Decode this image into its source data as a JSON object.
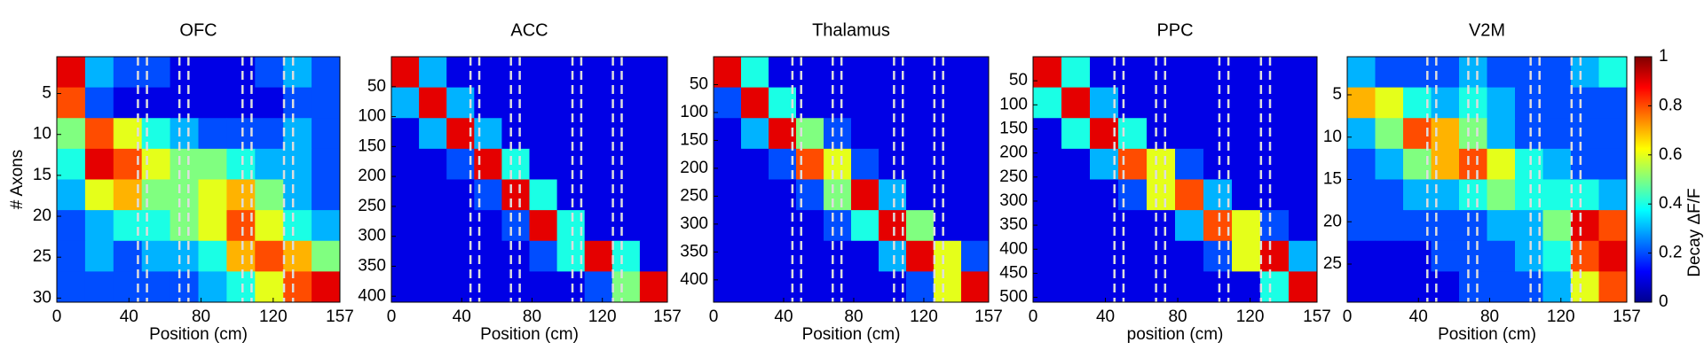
{
  "chart_data": [
    {
      "type": "heatmap",
      "title": "OFC",
      "xlabel": "Position (cm)",
      "ylabel": "# Axons",
      "xlim": [
        0,
        157
      ],
      "xticks": [
        0,
        40,
        80,
        120,
        157
      ],
      "ylim": [
        0.5,
        30.5
      ],
      "yticks": [
        5,
        10,
        15,
        20,
        25,
        30
      ],
      "landmarks": [
        45,
        50,
        68,
        73,
        103,
        108,
        126,
        131
      ],
      "z": [
        [
          0.9,
          0.3,
          0.2,
          0.2,
          0.1,
          0.1,
          0.1,
          0.2,
          0.3,
          0.2
        ],
        [
          0.8,
          0.2,
          0.1,
          0.1,
          0.1,
          0.1,
          0.1,
          0.1,
          0.2,
          0.2
        ],
        [
          0.5,
          0.8,
          0.6,
          0.4,
          0.3,
          0.2,
          0.2,
          0.2,
          0.3,
          0.2
        ],
        [
          0.4,
          0.9,
          0.8,
          0.6,
          0.5,
          0.5,
          0.4,
          0.3,
          0.3,
          0.2
        ],
        [
          0.3,
          0.6,
          0.7,
          0.5,
          0.5,
          0.6,
          0.7,
          0.5,
          0.3,
          0.2
        ],
        [
          0.2,
          0.3,
          0.4,
          0.4,
          0.5,
          0.6,
          0.8,
          0.6,
          0.4,
          0.3
        ],
        [
          0.2,
          0.3,
          0.2,
          0.3,
          0.3,
          0.4,
          0.7,
          0.8,
          0.7,
          0.5
        ],
        [
          0.2,
          0.2,
          0.2,
          0.2,
          0.2,
          0.3,
          0.4,
          0.6,
          0.8,
          0.9
        ]
      ]
    },
    {
      "type": "heatmap",
      "title": "ACC",
      "xlabel": "Position (cm)",
      "xlim": [
        0,
        157
      ],
      "xticks": [
        0,
        40,
        80,
        120,
        157
      ],
      "ylim": [
        0,
        410
      ],
      "yticks": [
        50,
        100,
        150,
        200,
        250,
        300,
        350,
        400
      ],
      "landmarks": [
        45,
        50,
        68,
        73,
        103,
        108,
        126,
        131
      ],
      "z": [
        [
          0.9,
          0.3,
          0.1,
          0.1,
          0.1,
          0.1,
          0.1,
          0.1,
          0.1,
          0.1
        ],
        [
          0.3,
          0.9,
          0.3,
          0.1,
          0.1,
          0.1,
          0.1,
          0.1,
          0.1,
          0.1
        ],
        [
          0.1,
          0.3,
          0.9,
          0.3,
          0.1,
          0.1,
          0.1,
          0.1,
          0.1,
          0.1
        ],
        [
          0.1,
          0.1,
          0.2,
          0.9,
          0.4,
          0.1,
          0.1,
          0.1,
          0.1,
          0.1
        ],
        [
          0.1,
          0.1,
          0.1,
          0.2,
          0.9,
          0.4,
          0.1,
          0.1,
          0.1,
          0.1
        ],
        [
          0.1,
          0.1,
          0.1,
          0.1,
          0.2,
          0.9,
          0.4,
          0.1,
          0.1,
          0.1
        ],
        [
          0.1,
          0.1,
          0.1,
          0.1,
          0.1,
          0.2,
          0.4,
          0.9,
          0.4,
          0.1
        ],
        [
          0.1,
          0.1,
          0.1,
          0.1,
          0.1,
          0.1,
          0.1,
          0.2,
          0.5,
          0.9
        ]
      ]
    },
    {
      "type": "heatmap",
      "title": "Thalamus",
      "xlabel": "Position (cm)",
      "xlim": [
        0,
        157
      ],
      "xticks": [
        0,
        40,
        80,
        120,
        157
      ],
      "ylim": [
        0,
        440
      ],
      "yticks": [
        50,
        100,
        150,
        200,
        250,
        300,
        350,
        400
      ],
      "landmarks": [
        45,
        50,
        68,
        73,
        103,
        108,
        126,
        131
      ],
      "z": [
        [
          0.9,
          0.4,
          0.1,
          0.1,
          0.1,
          0.1,
          0.1,
          0.1,
          0.1,
          0.1
        ],
        [
          0.2,
          0.9,
          0.4,
          0.1,
          0.1,
          0.1,
          0.1,
          0.1,
          0.1,
          0.1
        ],
        [
          0.1,
          0.3,
          0.9,
          0.5,
          0.2,
          0.1,
          0.1,
          0.1,
          0.1,
          0.1
        ],
        [
          0.1,
          0.1,
          0.2,
          0.8,
          0.6,
          0.2,
          0.1,
          0.1,
          0.1,
          0.1
        ],
        [
          0.1,
          0.1,
          0.1,
          0.2,
          0.5,
          0.9,
          0.3,
          0.1,
          0.1,
          0.1
        ],
        [
          0.1,
          0.1,
          0.1,
          0.1,
          0.2,
          0.4,
          0.9,
          0.5,
          0.1,
          0.1
        ],
        [
          0.1,
          0.1,
          0.1,
          0.1,
          0.1,
          0.1,
          0.3,
          0.9,
          0.6,
          0.2
        ],
        [
          0.1,
          0.1,
          0.1,
          0.1,
          0.1,
          0.1,
          0.1,
          0.2,
          0.6,
          0.9
        ]
      ]
    },
    {
      "type": "heatmap",
      "title": "PPC",
      "xlabel": "position (cm)",
      "xlim": [
        0,
        157
      ],
      "xticks": [
        0,
        40,
        80,
        120,
        157
      ],
      "ylim": [
        0,
        510
      ],
      "yticks": [
        50,
        100,
        150,
        200,
        250,
        300,
        350,
        400,
        450,
        500
      ],
      "landmarks": [
        45,
        50,
        68,
        73,
        103,
        108,
        126,
        131
      ],
      "z": [
        [
          0.9,
          0.4,
          0.1,
          0.1,
          0.1,
          0.1,
          0.1,
          0.1,
          0.1,
          0.1
        ],
        [
          0.4,
          0.9,
          0.3,
          0.1,
          0.1,
          0.1,
          0.1,
          0.1,
          0.1,
          0.1
        ],
        [
          0.1,
          0.4,
          0.9,
          0.4,
          0.1,
          0.1,
          0.1,
          0.1,
          0.1,
          0.1
        ],
        [
          0.1,
          0.1,
          0.3,
          0.8,
          0.6,
          0.2,
          0.1,
          0.1,
          0.1,
          0.1
        ],
        [
          0.1,
          0.1,
          0.1,
          0.2,
          0.6,
          0.8,
          0.3,
          0.1,
          0.1,
          0.1
        ],
        [
          0.1,
          0.1,
          0.1,
          0.1,
          0.1,
          0.3,
          0.8,
          0.6,
          0.2,
          0.1
        ],
        [
          0.1,
          0.1,
          0.1,
          0.1,
          0.1,
          0.1,
          0.2,
          0.6,
          0.9,
          0.3
        ],
        [
          0.1,
          0.1,
          0.1,
          0.1,
          0.1,
          0.1,
          0.1,
          0.1,
          0.4,
          0.9
        ]
      ]
    },
    {
      "type": "heatmap",
      "title": "V2M",
      "xlabel": "Position (cm)",
      "xlim": [
        0,
        157
      ],
      "xticks": [
        0,
        40,
        80,
        120,
        157
      ],
      "ylim": [
        0.5,
        29.5
      ],
      "yticks": [
        5,
        10,
        15,
        20,
        25
      ],
      "landmarks": [
        45,
        50,
        68,
        73,
        103,
        108,
        126,
        131
      ],
      "z": [
        [
          0.3,
          0.2,
          0.2,
          0.2,
          0.3,
          0.2,
          0.2,
          0.2,
          0.3,
          0.4
        ],
        [
          0.7,
          0.6,
          0.4,
          0.3,
          0.4,
          0.3,
          0.2,
          0.2,
          0.2,
          0.2
        ],
        [
          0.3,
          0.5,
          0.8,
          0.7,
          0.5,
          0.3,
          0.2,
          0.2,
          0.2,
          0.2
        ],
        [
          0.2,
          0.3,
          0.5,
          0.7,
          0.8,
          0.6,
          0.4,
          0.3,
          0.2,
          0.2
        ],
        [
          0.2,
          0.2,
          0.3,
          0.3,
          0.4,
          0.5,
          0.4,
          0.4,
          0.4,
          0.3
        ],
        [
          0.2,
          0.2,
          0.2,
          0.2,
          0.2,
          0.3,
          0.3,
          0.5,
          0.9,
          0.8
        ],
        [
          0.1,
          0.1,
          0.1,
          0.2,
          0.2,
          0.2,
          0.3,
          0.4,
          0.8,
          0.9
        ],
        [
          0.1,
          0.1,
          0.1,
          0.1,
          0.2,
          0.2,
          0.2,
          0.3,
          0.6,
          0.8
        ]
      ],
      "colorbar": {
        "lim": [
          0,
          1
        ],
        "ticks": [
          0,
          0.2,
          0.4,
          0.6,
          0.8,
          1
        ],
        "label": "Decay ΔF/F"
      }
    }
  ]
}
